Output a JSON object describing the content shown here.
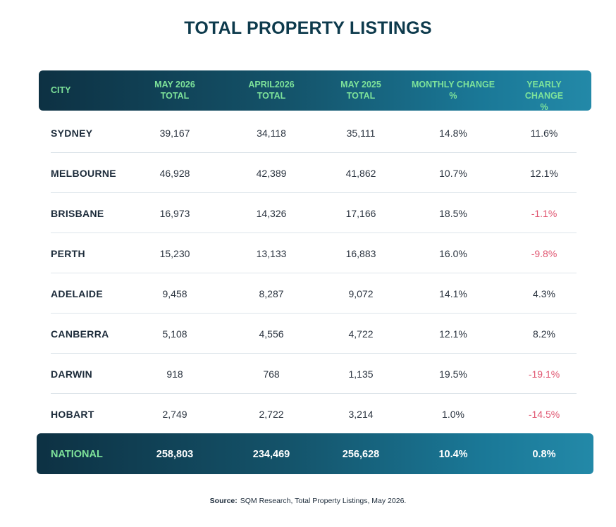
{
  "title": "TOTAL PROPERTY LISTINGS",
  "columns": {
    "city": "CITY",
    "may2026": "MAY 2026\nTOTAL",
    "april2026": "APRIL2026\nTOTAL",
    "may2025": "MAY 2025\nTOTAL",
    "monthly": "MONTHLY CHANGE\n%",
    "yearly": "YEARLY CHANGE\n%"
  },
  "rows": [
    {
      "city": "SYDNEY",
      "may2026": "39,167",
      "april2026": "34,118",
      "may2025": "35,111",
      "monthly": "14.8%",
      "yearly": "11.6%"
    },
    {
      "city": "MELBOURNE",
      "may2026": "46,928",
      "april2026": "42,389",
      "may2025": "41,862",
      "monthly": "10.7%",
      "yearly": "12.1%"
    },
    {
      "city": "BRISBANE",
      "may2026": "16,973",
      "april2026": "14,326",
      "may2025": "17,166",
      "monthly": "18.5%",
      "yearly": "-1.1%"
    },
    {
      "city": "PERTH",
      "may2026": "15,230",
      "april2026": "13,133",
      "may2025": "16,883",
      "monthly": "16.0%",
      "yearly": "-9.8%"
    },
    {
      "city": "ADELAIDE",
      "may2026": "9,458",
      "april2026": "8,287",
      "may2025": "9,072",
      "monthly": "14.1%",
      "yearly": "4.3%"
    },
    {
      "city": "CANBERRA",
      "may2026": "5,108",
      "april2026": "4,556",
      "may2025": "4,722",
      "monthly": "12.1%",
      "yearly": "8.2%"
    },
    {
      "city": "DARWIN",
      "may2026": "918",
      "april2026": "768",
      "may2025": "1,135",
      "monthly": "19.5%",
      "yearly": "-19.1%"
    },
    {
      "city": "HOBART",
      "may2026": "2,749",
      "april2026": "2,722",
      "may2025": "3,214",
      "monthly": "1.0%",
      "yearly": "-14.5%"
    }
  ],
  "national": {
    "city": "NATIONAL",
    "may2026": "258,803",
    "april2026": "234,469",
    "may2025": "256,628",
    "monthly": "10.4%",
    "yearly": "0.8%"
  },
  "source": {
    "label": "Source:",
    "text": "SQM Research, Total Property Listings, May 2026."
  },
  "colors": {
    "header_text": "#7ee39a",
    "negative": "#e05671",
    "header_dark": "#0d3143",
    "header_light": "#2389a8"
  }
}
